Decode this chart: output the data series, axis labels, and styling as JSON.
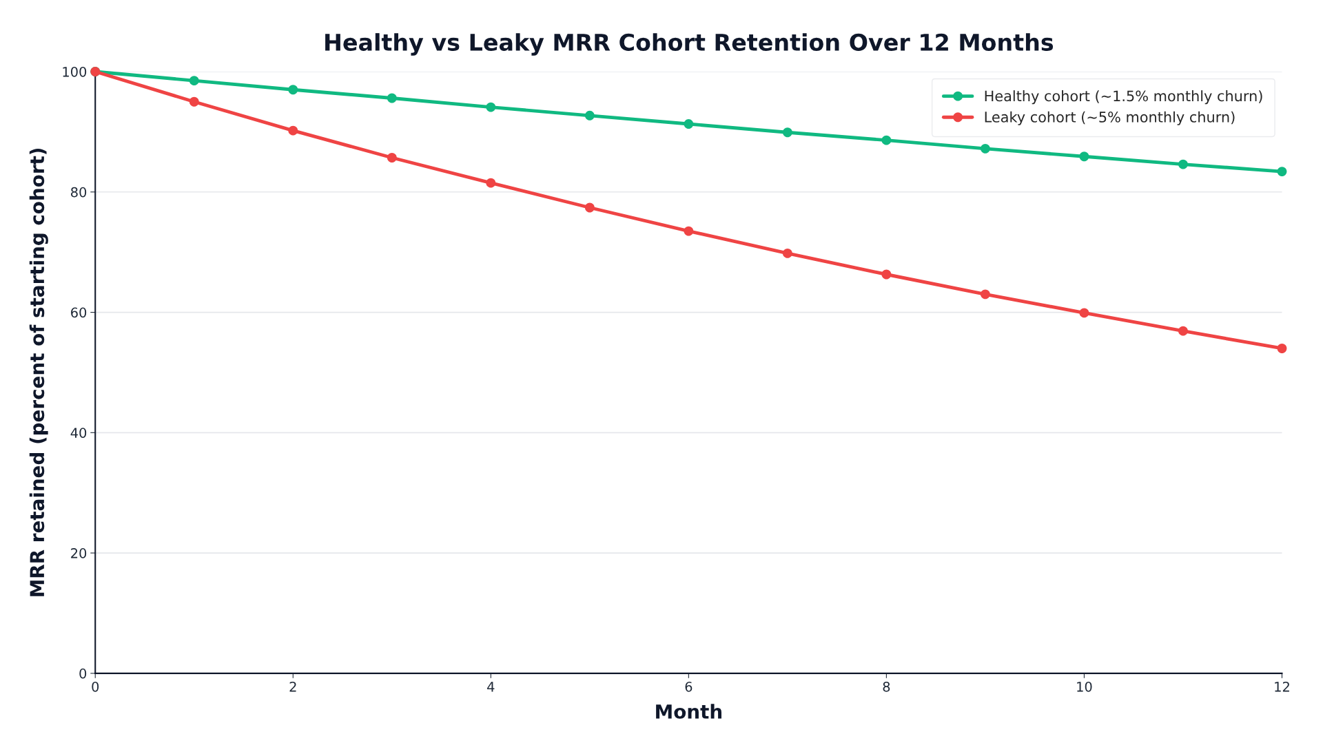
{
  "chart_data": {
    "type": "line",
    "title": "Healthy vs Leaky MRR Cohort Retention Over 12 Months",
    "xlabel": "Month",
    "ylabel": "MRR retained (percent of starting cohort)",
    "x": [
      0,
      1,
      2,
      3,
      4,
      5,
      6,
      7,
      8,
      9,
      10,
      11,
      12
    ],
    "series": [
      {
        "name": "Healthy cohort (~1.5% monthly churn)",
        "color": "#10b981",
        "values": [
          100,
          98.5,
          97.0,
          95.6,
          94.1,
          92.7,
          91.3,
          89.9,
          88.6,
          87.2,
          85.9,
          84.6,
          83.4
        ]
      },
      {
        "name": "Leaky cohort (~5% monthly churn)",
        "color": "#ef4444",
        "values": [
          100,
          95.0,
          90.2,
          85.7,
          81.5,
          77.4,
          73.5,
          69.8,
          66.3,
          63.0,
          59.9,
          56.9,
          54.0
        ]
      }
    ],
    "xlim": [
      0,
      12
    ],
    "xticks": [
      0,
      2,
      4,
      6,
      8,
      10,
      12
    ],
    "ylim": [
      0,
      100
    ],
    "yticks": [
      0,
      20,
      40,
      60,
      80,
      100
    ],
    "grid": "y",
    "legend": "top right",
    "marker": "circle",
    "line_style": "solid"
  }
}
